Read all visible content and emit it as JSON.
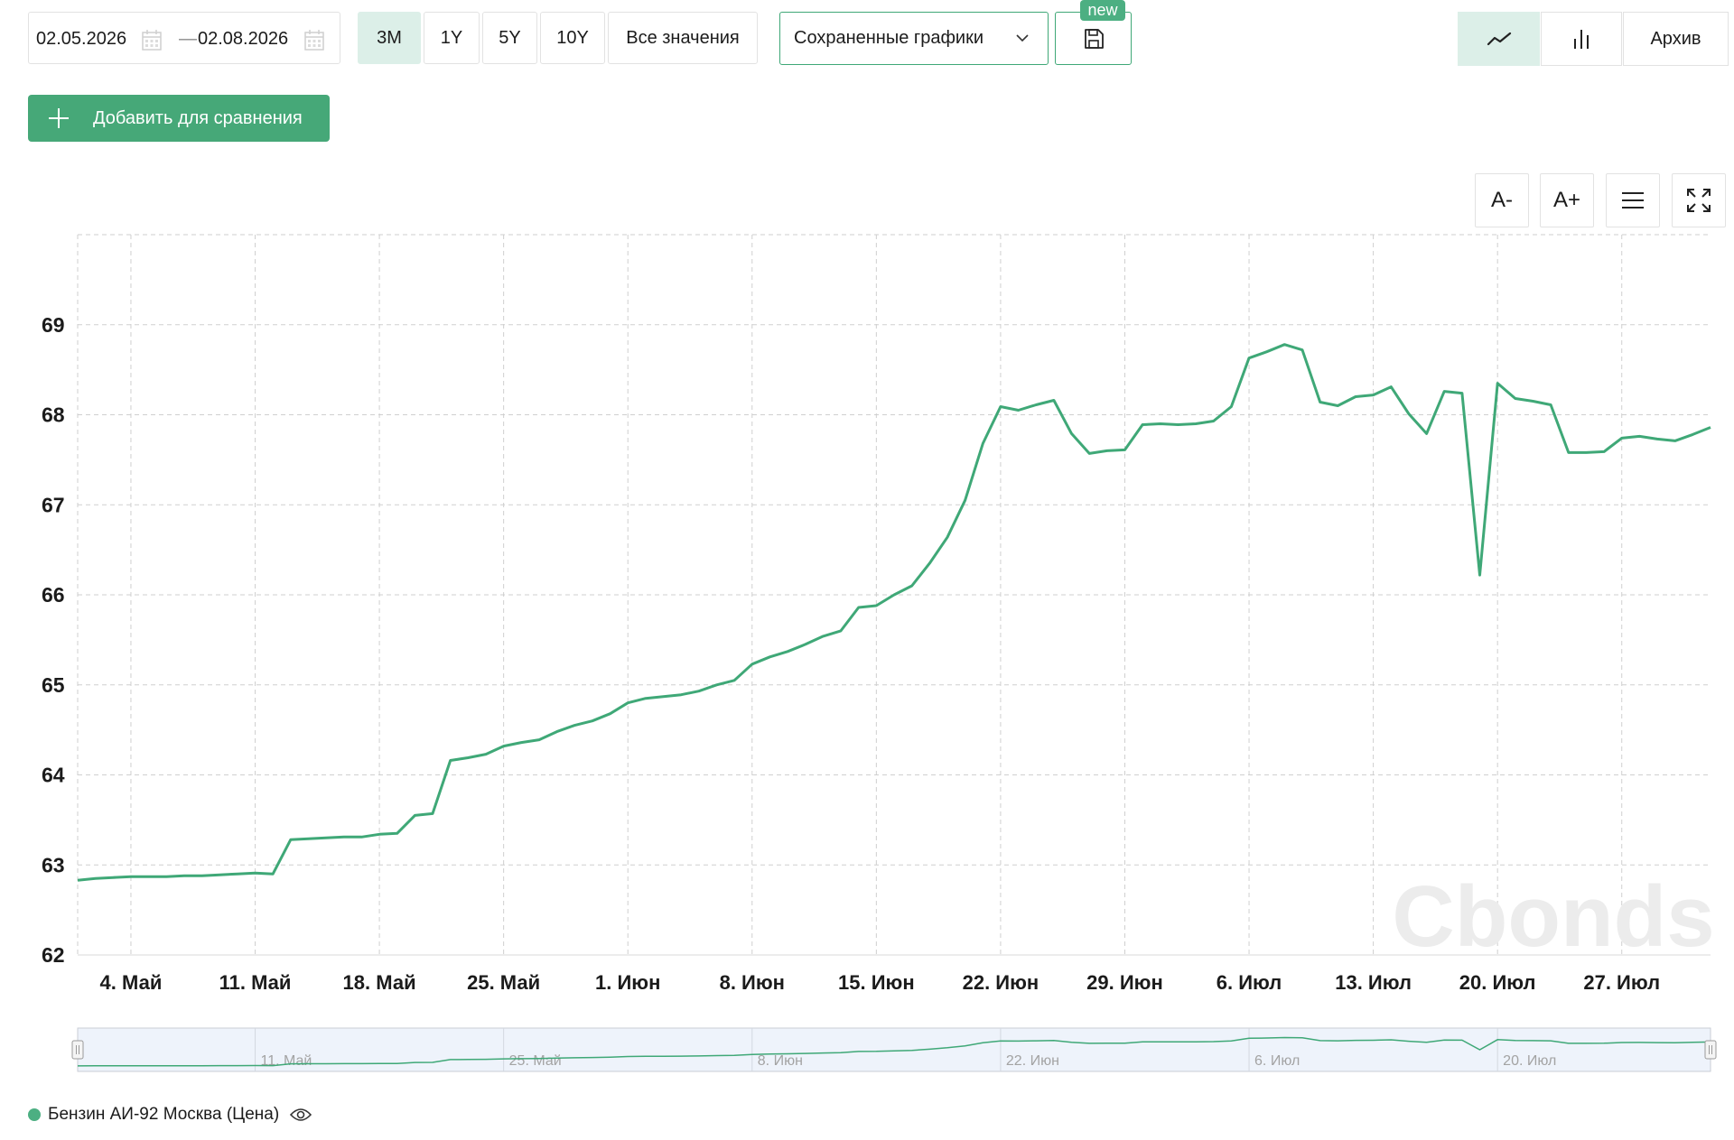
{
  "dates": {
    "from": "02.05.2026",
    "to": "02.08.2026",
    "separator": "—"
  },
  "periods": [
    "3M",
    "1Y",
    "5Y",
    "10Y",
    "Все значения"
  ],
  "active_period": "3M",
  "saved_charts": {
    "label": "Сохраненные графики",
    "badge": "new"
  },
  "chart_types": {
    "archive": "Архив"
  },
  "add_compare": "Добавить для сравнения",
  "tools": {
    "font_minus": "A-",
    "font_plus": "A+"
  },
  "legend": {
    "label": "Бензин АИ-92 Москва (Цена)"
  },
  "colors": {
    "accent": "#4caf82",
    "line": "#3fa877",
    "active_bg": "#dcefe8"
  },
  "watermark": "Cbonds",
  "chart_data": {
    "type": "line",
    "title": "",
    "xlabel": "",
    "ylabel": "",
    "ylim": [
      62,
      70
    ],
    "yticks": [
      62,
      63,
      64,
      65,
      66,
      67,
      68,
      69
    ],
    "x_range": [
      "2026-05-01",
      "2026-08-01"
    ],
    "xtick_dates": [
      "2026-05-04",
      "2026-05-11",
      "2026-05-18",
      "2026-05-25",
      "2026-06-01",
      "2026-06-08",
      "2026-06-15",
      "2026-06-22",
      "2026-06-29",
      "2026-07-06",
      "2026-07-13",
      "2026-07-20",
      "2026-07-27"
    ],
    "xtick_labels": [
      "4. Май",
      "11. Май",
      "18. Май",
      "25. Май",
      "1. Июн",
      "8. Июн",
      "15. Июн",
      "22. Июн",
      "29. Июн",
      "6. Июл",
      "13. Июл",
      "20. Июл",
      "27. Июл"
    ],
    "navigator_labels": [
      "11. Май",
      "25. Май",
      "8. Июн",
      "22. Июн",
      "6. Июл",
      "20. Июл"
    ],
    "navigator_dates": [
      "2026-05-11",
      "2026-05-25",
      "2026-06-08",
      "2026-06-22",
      "2026-07-06",
      "2026-07-20"
    ],
    "grid": true,
    "legend_position": "bottom-left",
    "series": [
      {
        "name": "Бензин АИ-92 Москва (Цена)",
        "x": [
          "2026-05-01",
          "2026-05-02",
          "2026-05-03",
          "2026-05-04",
          "2026-05-05",
          "2026-05-06",
          "2026-05-07",
          "2026-05-08",
          "2026-05-09",
          "2026-05-10",
          "2026-05-11",
          "2026-05-12",
          "2026-05-13",
          "2026-05-14",
          "2026-05-15",
          "2026-05-16",
          "2026-05-17",
          "2026-05-18",
          "2026-05-19",
          "2026-05-20",
          "2026-05-21",
          "2026-05-22",
          "2026-05-23",
          "2026-05-24",
          "2026-05-25",
          "2026-05-26",
          "2026-05-27",
          "2026-05-28",
          "2026-05-29",
          "2026-05-30",
          "2026-05-31",
          "2026-06-01",
          "2026-06-02",
          "2026-06-03",
          "2026-06-04",
          "2026-06-05",
          "2026-06-06",
          "2026-06-07",
          "2026-06-08",
          "2026-06-09",
          "2026-06-10",
          "2026-06-11",
          "2026-06-12",
          "2026-06-13",
          "2026-06-14",
          "2026-06-15",
          "2026-06-16",
          "2026-06-17",
          "2026-06-18",
          "2026-06-19",
          "2026-06-20",
          "2026-06-21",
          "2026-06-22",
          "2026-06-23",
          "2026-06-24",
          "2026-06-25",
          "2026-06-26",
          "2026-06-27",
          "2026-06-28",
          "2026-06-29",
          "2026-06-30",
          "2026-07-01",
          "2026-07-02",
          "2026-07-03",
          "2026-07-04",
          "2026-07-05",
          "2026-07-06",
          "2026-07-07",
          "2026-07-08",
          "2026-07-09",
          "2026-07-10",
          "2026-07-11",
          "2026-07-12",
          "2026-07-13",
          "2026-07-14",
          "2026-07-15",
          "2026-07-16",
          "2026-07-17",
          "2026-07-18",
          "2026-07-19",
          "2026-07-20",
          "2026-07-21",
          "2026-07-22",
          "2026-07-23",
          "2026-07-24",
          "2026-07-25",
          "2026-07-26",
          "2026-07-27",
          "2026-07-28",
          "2026-07-29",
          "2026-07-30",
          "2026-07-31",
          "2026-08-01"
        ],
        "values": [
          62.83,
          62.85,
          62.86,
          62.87,
          62.87,
          62.87,
          62.88,
          62.88,
          62.89,
          62.9,
          62.91,
          62.9,
          63.28,
          63.29,
          63.3,
          63.31,
          63.31,
          63.34,
          63.35,
          63.55,
          63.57,
          64.16,
          64.19,
          64.23,
          64.32,
          64.36,
          64.39,
          64.48,
          64.55,
          64.6,
          64.68,
          64.8,
          64.85,
          64.87,
          64.89,
          64.93,
          65.0,
          65.05,
          65.23,
          65.31,
          65.37,
          65.45,
          65.54,
          65.6,
          65.86,
          65.88,
          66.0,
          66.1,
          66.35,
          66.64,
          67.05,
          67.68,
          68.09,
          68.05,
          68.11,
          68.16,
          67.79,
          67.57,
          67.6,
          67.61,
          67.89,
          67.9,
          67.89,
          67.9,
          67.93,
          68.09,
          68.63,
          68.7,
          68.78,
          68.72,
          68.14,
          68.1,
          68.2,
          68.22,
          68.31,
          68.01,
          67.79,
          68.26,
          68.24,
          66.22,
          68.35,
          68.18,
          68.15,
          68.11,
          67.58,
          67.58,
          67.59,
          67.74,
          67.76,
          67.73,
          67.71,
          67.78,
          67.86
        ]
      }
    ]
  }
}
